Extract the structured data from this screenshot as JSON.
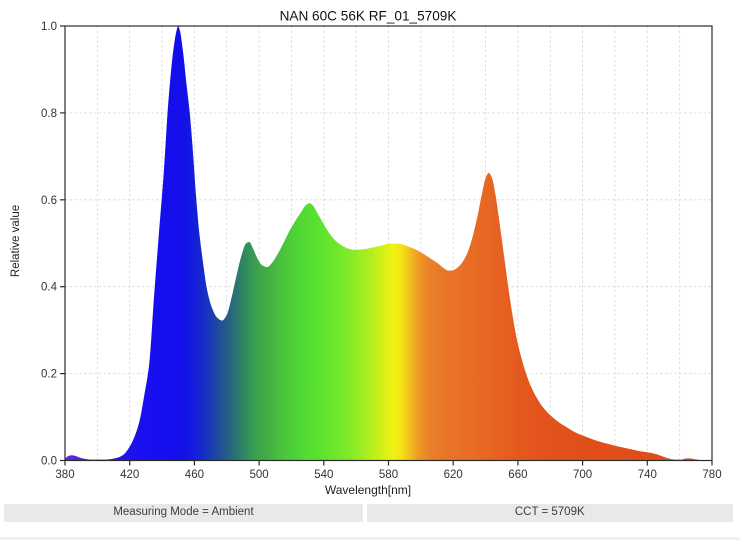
{
  "window": {
    "background": "#ffffff"
  },
  "chart_data": {
    "type": "area",
    "title": "NAN 60C 56K RF_01_5709K",
    "xlabel": "Wavelength[nm]",
    "ylabel": "Relative value",
    "xlim": [
      380,
      780
    ],
    "ylim": [
      0.0,
      1.0
    ],
    "x_ticks": [
      380,
      420,
      460,
      500,
      540,
      580,
      620,
      660,
      700,
      740,
      780
    ],
    "y_ticks": [
      "0.0",
      "0.2",
      "0.4",
      "0.6",
      "0.8",
      "1.0"
    ],
    "grid": true,
    "x_grid_step_nm": 20,
    "y_grid_step": 0.2,
    "legend": "none",
    "styles": {
      "frame_color": "#2b2b2b",
      "grid_color": "#d5d5d5",
      "tick_label_color": "#333333",
      "title_color": "#111111",
      "axis_label_color": "#222222"
    },
    "series": [
      {
        "name": "spectral power distribution",
        "points": [
          [
            380,
            0.005
          ],
          [
            382,
            0.01
          ],
          [
            384,
            0.012
          ],
          [
            386,
            0.011
          ],
          [
            389,
            0.007
          ],
          [
            392,
            0.004
          ],
          [
            396,
            0.002
          ],
          [
            400,
            0.002
          ],
          [
            404,
            0.002
          ],
          [
            408,
            0.003
          ],
          [
            412,
            0.006
          ],
          [
            416,
            0.013
          ],
          [
            420,
            0.032
          ],
          [
            423,
            0.055
          ],
          [
            426,
            0.09
          ],
          [
            429,
            0.15
          ],
          [
            432,
            0.22
          ],
          [
            435,
            0.375
          ],
          [
            438,
            0.52
          ],
          [
            441,
            0.66
          ],
          [
            444,
            0.83
          ],
          [
            447,
            0.945
          ],
          [
            449,
            0.99
          ],
          [
            450,
            1.0
          ],
          [
            451,
            0.99
          ],
          [
            453,
            0.94
          ],
          [
            455,
            0.87
          ],
          [
            457,
            0.805
          ],
          [
            459,
            0.715
          ],
          [
            461,
            0.61
          ],
          [
            463,
            0.525
          ],
          [
            465,
            0.465
          ],
          [
            468,
            0.39
          ],
          [
            471,
            0.35
          ],
          [
            474,
            0.329
          ],
          [
            477,
            0.322
          ],
          [
            480,
            0.335
          ],
          [
            483,
            0.375
          ],
          [
            486,
            0.425
          ],
          [
            489,
            0.47
          ],
          [
            492,
            0.5
          ],
          [
            494,
            0.503
          ],
          [
            496,
            0.49
          ],
          [
            499,
            0.465
          ],
          [
            502,
            0.449
          ],
          [
            505,
            0.445
          ],
          [
            508,
            0.455
          ],
          [
            511,
            0.472
          ],
          [
            515,
            0.5
          ],
          [
            519,
            0.53
          ],
          [
            523,
            0.555
          ],
          [
            526,
            0.572
          ],
          [
            529,
            0.588
          ],
          [
            531,
            0.592
          ],
          [
            533,
            0.588
          ],
          [
            536,
            0.57
          ],
          [
            539,
            0.55
          ],
          [
            543,
            0.525
          ],
          [
            547,
            0.507
          ],
          [
            551,
            0.495
          ],
          [
            555,
            0.488
          ],
          [
            559,
            0.485
          ],
          [
            564,
            0.486
          ],
          [
            570,
            0.49
          ],
          [
            576,
            0.495
          ],
          [
            581,
            0.499
          ],
          [
            586,
            0.499
          ],
          [
            591,
            0.494
          ],
          [
            596,
            0.487
          ],
          [
            601,
            0.477
          ],
          [
            606,
            0.465
          ],
          [
            610,
            0.455
          ],
          [
            614,
            0.443
          ],
          [
            617,
            0.437
          ],
          [
            620,
            0.438
          ],
          [
            623,
            0.445
          ],
          [
            626,
            0.458
          ],
          [
            629,
            0.48
          ],
          [
            632,
            0.515
          ],
          [
            635,
            0.562
          ],
          [
            638,
            0.618
          ],
          [
            640,
            0.65
          ],
          [
            642,
            0.662
          ],
          [
            644,
            0.65
          ],
          [
            646,
            0.615
          ],
          [
            648,
            0.565
          ],
          [
            650,
            0.51
          ],
          [
            652,
            0.455
          ],
          [
            654,
            0.4
          ],
          [
            656,
            0.35
          ],
          [
            658,
            0.305
          ],
          [
            660,
            0.268
          ],
          [
            663,
            0.225
          ],
          [
            666,
            0.19
          ],
          [
            669,
            0.163
          ],
          [
            672,
            0.142
          ],
          [
            675,
            0.125
          ],
          [
            678,
            0.112
          ],
          [
            681,
            0.101
          ],
          [
            685,
            0.089
          ],
          [
            689,
            0.079
          ],
          [
            693,
            0.07
          ],
          [
            697,
            0.062
          ],
          [
            701,
            0.056
          ],
          [
            706,
            0.049
          ],
          [
            711,
            0.043
          ],
          [
            716,
            0.038
          ],
          [
            721,
            0.033
          ],
          [
            726,
            0.029
          ],
          [
            731,
            0.025
          ],
          [
            736,
            0.021
          ],
          [
            740,
            0.019
          ],
          [
            743,
            0.017
          ],
          [
            746,
            0.014
          ],
          [
            749,
            0.01
          ],
          [
            752,
            0.006
          ],
          [
            755,
            0.003
          ],
          [
            758,
            0.002
          ],
          [
            761,
            0.002
          ],
          [
            764,
            0.005
          ],
          [
            766,
            0.005
          ],
          [
            768,
            0.004
          ],
          [
            771,
            0.002
          ],
          [
            774,
            0.001
          ],
          [
            777,
            0.0005
          ],
          [
            780,
            0.0
          ]
        ]
      }
    ],
    "spectrum_gradient": [
      [
        380,
        "#6128DE"
      ],
      [
        388,
        "#5224DE"
      ],
      [
        398,
        "#3D1FE2"
      ],
      [
        410,
        "#2815E8"
      ],
      [
        425,
        "#1B0FEE"
      ],
      [
        440,
        "#150EEF"
      ],
      [
        452,
        "#130FE9"
      ],
      [
        462,
        "#1421D6"
      ],
      [
        470,
        "#1A3BB4"
      ],
      [
        478,
        "#235690"
      ],
      [
        486,
        "#2C7471"
      ],
      [
        493,
        "#32915A"
      ],
      [
        500,
        "#3FA44B"
      ],
      [
        508,
        "#45B442"
      ],
      [
        517,
        "#4CC83B"
      ],
      [
        528,
        "#52DB33"
      ],
      [
        538,
        "#5CE32E"
      ],
      [
        548,
        "#6EE72B"
      ],
      [
        558,
        "#8BEA26"
      ],
      [
        568,
        "#ADEE1F"
      ],
      [
        576,
        "#D2F117"
      ],
      [
        583,
        "#EFF212"
      ],
      [
        588,
        "#F3E214"
      ],
      [
        593,
        "#F2C01B"
      ],
      [
        598,
        "#EE9D26"
      ],
      [
        604,
        "#EA842A"
      ],
      [
        612,
        "#E97829"
      ],
      [
        625,
        "#E87026"
      ],
      [
        640,
        "#E76722"
      ],
      [
        655,
        "#E55D1F"
      ],
      [
        672,
        "#E3541D"
      ],
      [
        700,
        "#E14F1B"
      ],
      [
        740,
        "#E04C1A"
      ],
      [
        780,
        "#E04C1A"
      ]
    ]
  },
  "footer": {
    "measuring_mode": "Measuring Mode = Ambient",
    "cct": "CCT = 5709K"
  }
}
